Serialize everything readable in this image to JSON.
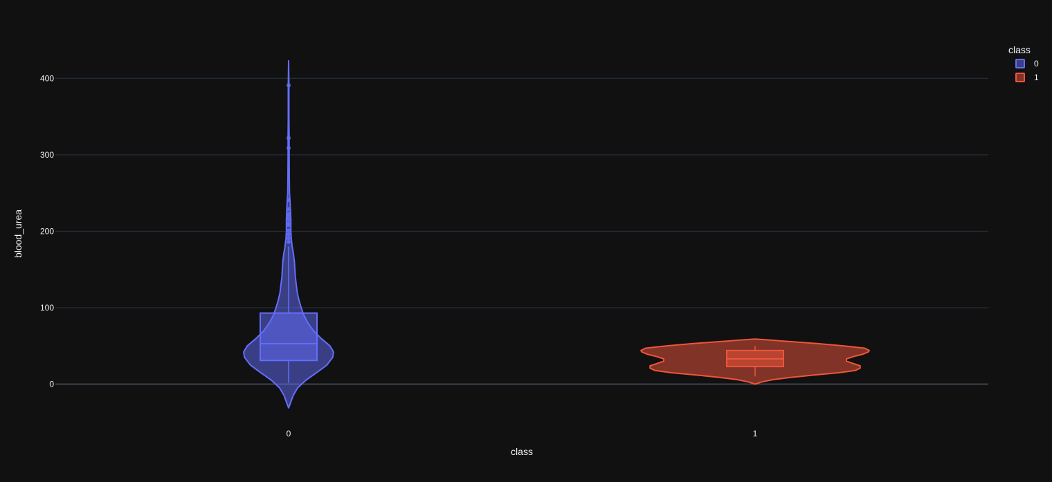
{
  "chart_data": {
    "type": "violin",
    "xlabel": "class",
    "ylabel": "blood_urea",
    "categories": [
      "0",
      "1"
    ],
    "ylim": [
      -60,
      445
    ],
    "yticks": [
      0,
      100,
      200,
      300,
      400
    ],
    "grid": true,
    "legend": {
      "title": "class",
      "placement": "top-right",
      "items": [
        {
          "label": "0",
          "color": "#636efa"
        },
        {
          "label": "1",
          "color": "#ef553b"
        }
      ]
    },
    "series": [
      {
        "name": "0",
        "category": "0",
        "color": "#636efa",
        "box": {
          "q1": 31,
          "median": 53,
          "q3": 93,
          "lower_fence": 1.5,
          "upper_fence": 180
        },
        "outliers": [
          186,
          191,
          196,
          201,
          208,
          210,
          215,
          219,
          223,
          229,
          241,
          309,
          322,
          391
        ],
        "violin_range": [
          -31,
          423
        ],
        "density": [
          {
            "y": -31,
            "w": 0.0
          },
          {
            "y": -25,
            "w": 0.04
          },
          {
            "y": -15,
            "w": 0.1
          },
          {
            "y": -5,
            "w": 0.2
          },
          {
            "y": 5,
            "w": 0.38
          },
          {
            "y": 15,
            "w": 0.62
          },
          {
            "y": 25,
            "w": 0.85
          },
          {
            "y": 35,
            "w": 0.98
          },
          {
            "y": 42,
            "w": 1.0
          },
          {
            "y": 50,
            "w": 0.92
          },
          {
            "y": 60,
            "w": 0.72
          },
          {
            "y": 70,
            "w": 0.55
          },
          {
            "y": 80,
            "w": 0.43
          },
          {
            "y": 90,
            "w": 0.34
          },
          {
            "y": 100,
            "w": 0.28
          },
          {
            "y": 110,
            "w": 0.23
          },
          {
            "y": 120,
            "w": 0.19
          },
          {
            "y": 130,
            "w": 0.17
          },
          {
            "y": 140,
            "w": 0.15
          },
          {
            "y": 150,
            "w": 0.14
          },
          {
            "y": 160,
            "w": 0.13
          },
          {
            "y": 170,
            "w": 0.11
          },
          {
            "y": 180,
            "w": 0.08
          },
          {
            "y": 190,
            "w": 0.06
          },
          {
            "y": 200,
            "w": 0.05
          },
          {
            "y": 215,
            "w": 0.05
          },
          {
            "y": 230,
            "w": 0.04
          },
          {
            "y": 250,
            "w": 0.02
          },
          {
            "y": 270,
            "w": 0.015
          },
          {
            "y": 300,
            "w": 0.012
          },
          {
            "y": 320,
            "w": 0.012
          },
          {
            "y": 350,
            "w": 0.008
          },
          {
            "y": 390,
            "w": 0.008
          },
          {
            "y": 423,
            "w": 0.0
          }
        ]
      },
      {
        "name": "1",
        "category": "1",
        "color": "#ef553b",
        "box": {
          "q1": 23,
          "median": 33,
          "q3": 44,
          "lower_fence": 10,
          "upper_fence": 50
        },
        "outliers": [],
        "violin_range": [
          0,
          59
        ],
        "density": [
          {
            "y": 0,
            "w": 0.0
          },
          {
            "y": 3,
            "w": 0.06
          },
          {
            "y": 6,
            "w": 0.16
          },
          {
            "y": 9,
            "w": 0.32
          },
          {
            "y": 12,
            "w": 0.52
          },
          {
            "y": 15,
            "w": 0.74
          },
          {
            "y": 18,
            "w": 0.88
          },
          {
            "y": 21,
            "w": 0.92
          },
          {
            "y": 24,
            "w": 0.92
          },
          {
            "y": 27,
            "w": 0.86
          },
          {
            "y": 30,
            "w": 0.8
          },
          {
            "y": 33,
            "w": 0.8
          },
          {
            "y": 36,
            "w": 0.86
          },
          {
            "y": 39,
            "w": 0.94
          },
          {
            "y": 42,
            "w": 0.99
          },
          {
            "y": 44,
            "w": 1.0
          },
          {
            "y": 47,
            "w": 0.96
          },
          {
            "y": 50,
            "w": 0.78
          },
          {
            "y": 53,
            "w": 0.55
          },
          {
            "y": 56,
            "w": 0.28
          },
          {
            "y": 58,
            "w": 0.1
          },
          {
            "y": 59,
            "w": 0.0
          }
        ]
      }
    ]
  }
}
